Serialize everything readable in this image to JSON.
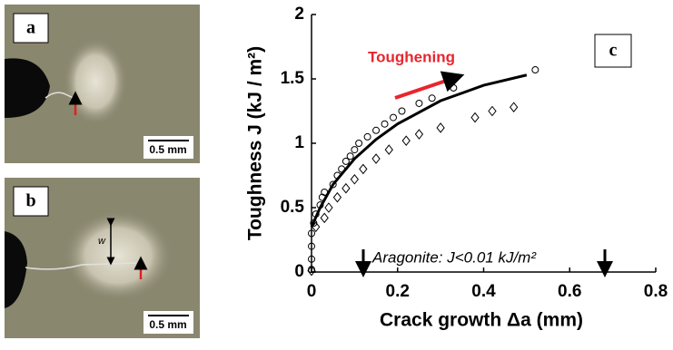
{
  "panels": {
    "a": "a",
    "b": "b",
    "c": "c",
    "scale_a": "0.5 mm",
    "scale_b": "0.5 mm",
    "width_label": "w"
  },
  "chart_data": {
    "type": "scatter",
    "xlabel": "Crack growth Δa (mm)",
    "ylabel": "Toughness J (kJ / m²)",
    "annotations": [
      "Toughening",
      "Aragonite: J<0.01 kJ/m²"
    ],
    "xlim": [
      0,
      0.8
    ],
    "ylim": [
      0,
      2
    ],
    "xticks": [
      0,
      0.2,
      0.4,
      0.6,
      0.8
    ],
    "yticks": [
      0,
      0.5,
      1,
      1.5,
      2
    ],
    "series": [
      {
        "marker": "circle",
        "color": "#000000",
        "x": [
          0,
          0,
          0,
          0,
          0.005,
          0.01,
          0.02,
          0.025,
          0.03,
          0.05,
          0.06,
          0.07,
          0.08,
          0.09,
          0.1,
          0.11,
          0.13,
          0.15,
          0.17,
          0.19,
          0.21,
          0.25,
          0.28,
          0.33,
          0.52
        ],
        "values": [
          0.02,
          0.1,
          0.2,
          0.3,
          0.38,
          0.45,
          0.52,
          0.58,
          0.62,
          0.68,
          0.75,
          0.8,
          0.86,
          0.9,
          0.95,
          1.0,
          1.05,
          1.1,
          1.15,
          1.2,
          1.25,
          1.31,
          1.35,
          1.43,
          1.57
        ]
      },
      {
        "marker": "diamond",
        "color": "#000000",
        "x": [
          0,
          0.01,
          0.03,
          0.04,
          0.06,
          0.08,
          0.1,
          0.12,
          0.15,
          0.18,
          0.22,
          0.25,
          0.3,
          0.38,
          0.42,
          0.47
        ],
        "values": [
          0.01,
          0.35,
          0.42,
          0.5,
          0.58,
          0.65,
          0.72,
          0.8,
          0.88,
          0.95,
          1.02,
          1.07,
          1.12,
          1.2,
          1.25,
          1.28
        ]
      },
      {
        "marker": "line",
        "color": "#000000",
        "x": [
          0,
          0.02,
          0.05,
          0.1,
          0.15,
          0.2,
          0.3,
          0.4,
          0.5
        ],
        "values": [
          0.35,
          0.5,
          0.68,
          0.88,
          1.03,
          1.15,
          1.33,
          1.45,
          1.53
        ]
      }
    ]
  }
}
